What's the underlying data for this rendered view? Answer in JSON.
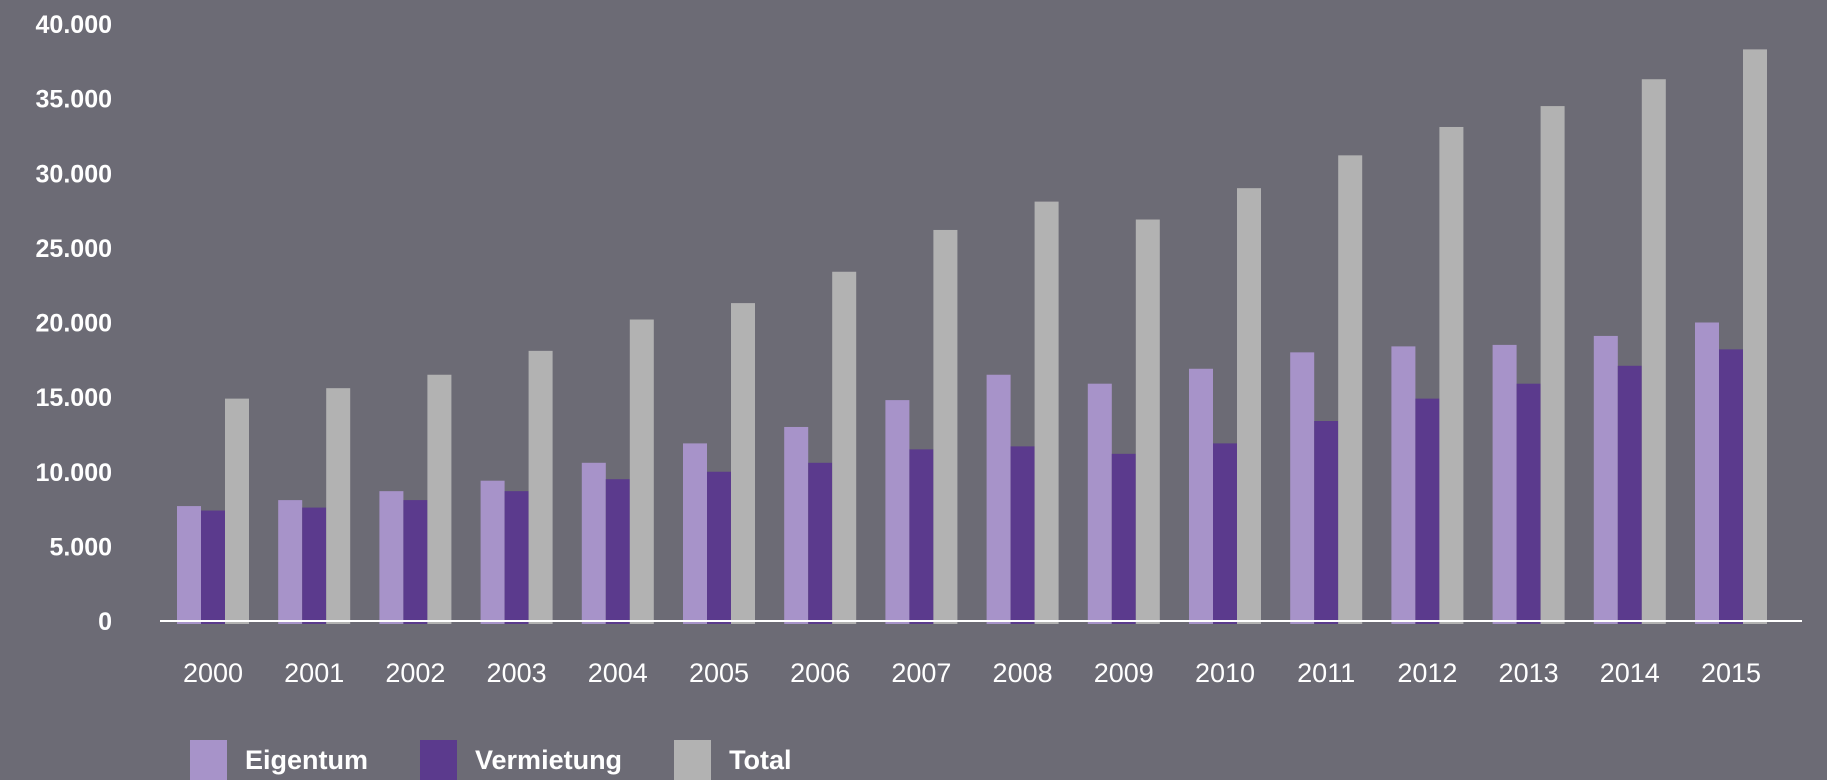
{
  "chart_data": {
    "type": "bar",
    "categories": [
      "2000",
      "2001",
      "2002",
      "2003",
      "2004",
      "2005",
      "2006",
      "2007",
      "2008",
      "2009",
      "2010",
      "2011",
      "2012",
      "2013",
      "2014",
      "2015"
    ],
    "series": [
      {
        "name": "Eigentum",
        "color": "#a793c9",
        "values": [
          7700,
          8100,
          8700,
          9400,
          10600,
          11900,
          13000,
          14800,
          16500,
          15900,
          16900,
          18000,
          18400,
          18500,
          19100,
          20000
        ]
      },
      {
        "name": "Vermietung",
        "color": "#5b3a8d",
        "values": [
          7400,
          7600,
          8100,
          8700,
          9500,
          10000,
          10600,
          11500,
          11700,
          11200,
          11900,
          13400,
          14900,
          15900,
          17100,
          18200
        ]
      },
      {
        "name": "Total",
        "color": "#b2b2b2",
        "values": [
          14900,
          15600,
          16500,
          18100,
          20200,
          21300,
          23400,
          26200,
          28100,
          26900,
          29000,
          31200,
          33100,
          34500,
          36300,
          38300
        ]
      }
    ],
    "ylim": [
      0,
      40000
    ],
    "y_ticks": [
      0,
      5000,
      10000,
      15000,
      20000,
      25000,
      30000,
      35000,
      40000
    ],
    "y_tick_labels": [
      "0",
      "5.000",
      "10.000",
      "15.000",
      "20.000",
      "25.000",
      "30.000",
      "35.000",
      "40.000"
    ],
    "title": "",
    "xlabel": "",
    "ylabel": "",
    "grid": false,
    "legend_position": "bottom-left",
    "background": "#6c6b75",
    "axis_color": "#ffffff"
  }
}
